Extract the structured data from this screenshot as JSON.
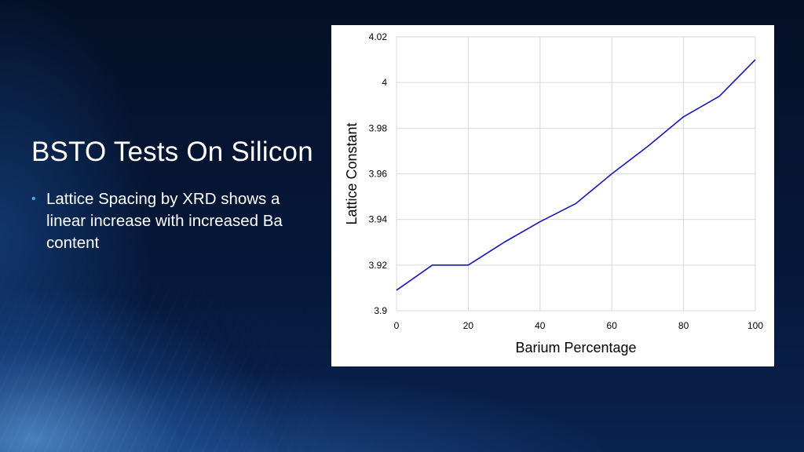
{
  "slide": {
    "title": "BSTO Tests On Silicon",
    "bullets": [
      "Lattice Spacing by XRD shows a linear increase with increased Ba content"
    ],
    "colors": {
      "background": "#05142b",
      "bullet_accent": "#41a9e8",
      "line": "#1414c8"
    }
  },
  "chart_data": {
    "type": "line",
    "title": "",
    "xlabel": "Barium Percentage",
    "ylabel": "Lattice Constant",
    "xlim": [
      0,
      100
    ],
    "ylim": [
      3.9,
      4.02
    ],
    "x_ticks": [
      "0",
      "20",
      "40",
      "60",
      "80",
      "100"
    ],
    "y_ticks": [
      "3.9",
      "3.92",
      "3.94",
      "3.96",
      "3.98",
      "4",
      "4.02"
    ],
    "grid": true,
    "legend": "none",
    "series": [
      {
        "x": [
          0,
          10,
          20,
          30,
          40,
          50,
          60,
          70,
          80,
          90,
          100
        ],
        "values": [
          3.909,
          3.92,
          3.92,
          3.93,
          3.939,
          3.947,
          3.96,
          3.972,
          3.985,
          3.994,
          4.01
        ]
      }
    ]
  }
}
